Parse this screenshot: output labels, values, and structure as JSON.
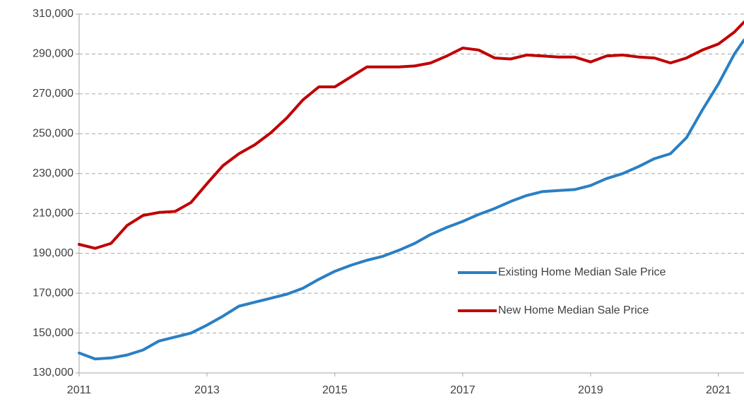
{
  "chart_data": {
    "type": "line",
    "x": [
      2011,
      2011.25,
      2011.5,
      2011.75,
      2012,
      2012.25,
      2012.5,
      2012.75,
      2013,
      2013.25,
      2013.5,
      2013.75,
      2014,
      2014.25,
      2014.5,
      2014.75,
      2015,
      2015.25,
      2015.5,
      2015.75,
      2016,
      2016.25,
      2016.5,
      2016.75,
      2017,
      2017.25,
      2017.5,
      2017.75,
      2018,
      2018.25,
      2018.5,
      2018.75,
      2019,
      2019.25,
      2019.5,
      2019.75,
      2020,
      2020.25,
      2020.5,
      2020.75,
      2021,
      2021.25,
      2021.4
    ],
    "series": [
      {
        "name": "Existing Home Median Sale Price",
        "color": "#2a7fc4",
        "values": [
          140000,
          137000,
          137500,
          139000,
          141500,
          146000,
          148000,
          150000,
          154000,
          158500,
          163500,
          165500,
          167500,
          169500,
          172500,
          177000,
          181000,
          184000,
          186500,
          188500,
          191500,
          195000,
          199500,
          203000,
          206000,
          209500,
          212500,
          216000,
          219000,
          221000,
          221500,
          222000,
          224000,
          227500,
          230000,
          233500,
          237500,
          240000,
          248000,
          262000,
          275000,
          290000,
          297000
        ]
      },
      {
        "name": "New Home Median Sale Price",
        "color": "#c00000",
        "values": [
          194500,
          192500,
          195000,
          204000,
          209000,
          210500,
          211000,
          215500,
          225000,
          234000,
          240000,
          244500,
          250500,
          258000,
          267000,
          273500,
          273500,
          278500,
          283500,
          283500,
          283500,
          284000,
          285500,
          289000,
          293000,
          292000,
          288000,
          287500,
          289500,
          289000,
          288500,
          288500,
          286000,
          289000,
          289500,
          288500,
          288000,
          285500,
          288000,
          292000,
          295000,
          301000,
          306000
        ]
      }
    ],
    "xlim": [
      2011,
      2021.4
    ],
    "xticks": [
      2011,
      2013,
      2015,
      2017,
      2019,
      2021
    ],
    "ylim": [
      130000,
      310000
    ],
    "yticks": [
      {
        "value": 130000,
        "label": "130,000"
      },
      {
        "value": 150000,
        "label": "150,000"
      },
      {
        "value": 170000,
        "label": "170,000"
      },
      {
        "value": 190000,
        "label": "190,000"
      },
      {
        "value": 210000,
        "label": "210,000"
      },
      {
        "value": 230000,
        "label": "230,000"
      },
      {
        "value": 250000,
        "label": "250,000"
      },
      {
        "value": 270000,
        "label": "270,000"
      },
      {
        "value": 290000,
        "label": "290,000"
      },
      {
        "value": 310000,
        "label": "310,000"
      }
    ],
    "grid": true,
    "legend": "right"
  }
}
